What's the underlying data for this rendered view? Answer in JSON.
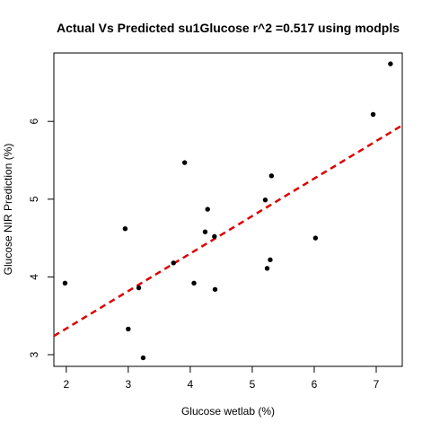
{
  "chart_data": {
    "type": "scatter",
    "title": "Actual Vs Predicted su1Glucose r^2 =0.517 using modpls",
    "xlabel": "Glucose wetlab (%)",
    "ylabel": "Glucose NIR Prediction (%)",
    "xlim": [
      1.8,
      7.42
    ],
    "ylim": [
      2.85,
      6.88
    ],
    "x_ticks": [
      "2",
      "3",
      "4",
      "5",
      "6",
      "7"
    ],
    "y_ticks": [
      "3",
      "4",
      "5",
      "6"
    ],
    "grid": false,
    "legend": "none",
    "points": {
      "x": [
        1.98,
        2.95,
        3.0,
        3.17,
        3.24,
        3.73,
        3.91,
        4.06,
        4.24,
        4.28,
        4.39,
        4.4,
        5.21,
        5.24,
        5.29,
        5.31,
        6.02,
        6.95,
        7.23
      ],
      "y": [
        3.92,
        4.62,
        3.33,
        3.86,
        2.96,
        4.18,
        5.47,
        3.92,
        4.58,
        4.87,
        4.52,
        3.84,
        4.99,
        4.11,
        4.22,
        5.3,
        4.5,
        6.09,
        6.74
      ],
      "color": "#000000"
    },
    "fit_line": {
      "x": [
        1.8,
        7.42
      ],
      "y": [
        3.24,
        5.95
      ],
      "color": "#dd0000",
      "style": "dashed"
    }
  }
}
